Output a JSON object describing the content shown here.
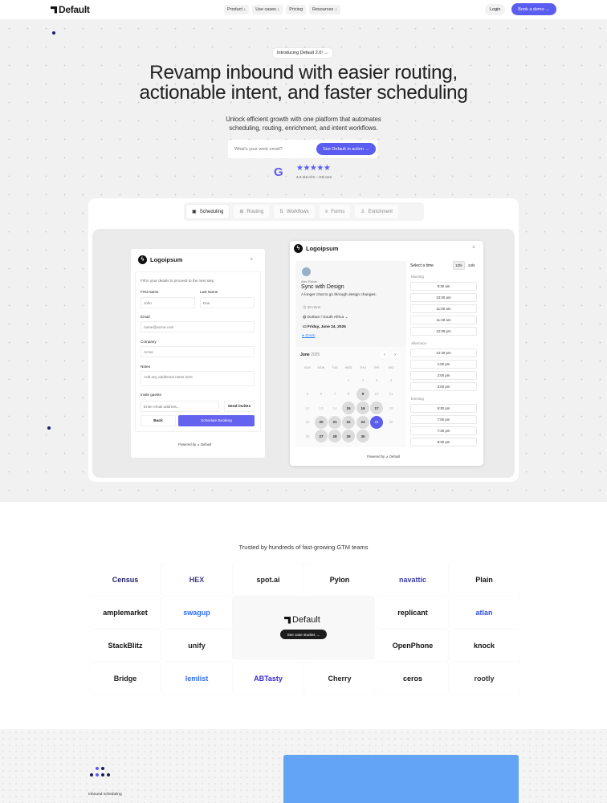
{
  "nav": {
    "logo": "Default",
    "links": [
      "Product ↓",
      "Use cases ↓",
      "Pricing",
      "Resources ↓"
    ],
    "login": "Login",
    "book_demo": "Book a demo →"
  },
  "hero": {
    "badge": "Introducing Default 2.0! →",
    "title_line1": "Revamp inbound with easier routing,",
    "title_line2": "actionable intent, and faster scheduling",
    "subtitle_line1": "Unlock efficient growth with one platform that automates",
    "subtitle_line2": "scheduling, routing, enrichment, and intent workflows.",
    "email_placeholder": "What's your work email?",
    "cta": "See Default in action →",
    "g2": "G",
    "stars": "★★★★★",
    "rating": 4.9,
    "rating_text": "4.9 out of 5 – G2.com"
  },
  "tabs": [
    {
      "label": "Scheduling",
      "icon": "calendar-icon",
      "glyph": "▣",
      "active": true
    },
    {
      "label": "Routing",
      "icon": "routing-icon",
      "glyph": "⊞"
    },
    {
      "label": "Workflows",
      "icon": "workflow-icon",
      "glyph": "⇅"
    },
    {
      "label": "Forms",
      "icon": "form-icon",
      "glyph": "≡"
    },
    {
      "label": "Enrichment",
      "icon": "user-icon",
      "glyph": "♙"
    }
  ],
  "form": {
    "brand": "Logoipsum",
    "intro": "Fill in your details to proceed to the next step",
    "first_name_label": "First Name",
    "first_name_placeholder": "John",
    "last_name_label": "Last Name",
    "last_name_placeholder": "Doe",
    "email_label": "Email",
    "email_placeholder": "name@acme.com",
    "company_label": "Company",
    "company_placeholder": "Acme",
    "notes_label": "Notes",
    "notes_placeholder": "Add any additional notes here",
    "guests_label": "Invite guests",
    "guests_placeholder": "Enter email address...",
    "send_invites": "Send invites",
    "back": "Back",
    "schedule": "Schedule Booking",
    "powered": "Powered by  ⊿ Default"
  },
  "scheduler": {
    "brand": "Logoipsum",
    "host": "Alex Fisher",
    "event_title": "Sync with Design",
    "event_desc": "A longer chat to go through design changes.",
    "duration": "30 mins",
    "timezone": "Durban / South Africa",
    "date": "Friday, June 24, 2025",
    "location": "Zoom",
    "month": "June",
    "year": "2025",
    "weekdays": [
      "SUN",
      "MON",
      "TUE",
      "WED",
      "THU",
      "FRI",
      "SAT"
    ],
    "weeks": [
      [
        "",
        "",
        "",
        "1",
        "2",
        "3",
        "4"
      ],
      [
        "5",
        "6",
        "7",
        "8",
        "9",
        "10",
        "11"
      ],
      [
        "12",
        "13",
        "14",
        "15",
        "16",
        "17",
        "18"
      ],
      [
        "19",
        "20",
        "21",
        "22",
        "23",
        "24",
        "25"
      ],
      [
        "26",
        "27",
        "28",
        "29",
        "30",
        "",
        ""
      ]
    ],
    "available": [
      "9",
      "15",
      "16",
      "17",
      "20",
      "21",
      "22",
      "23",
      "27",
      "28",
      "29",
      "30"
    ],
    "selected": "24",
    "select_time": "Select a time",
    "format_12": "12hr",
    "format_24": "24hr",
    "sections": [
      {
        "label": "Morning",
        "slots": [
          "9:30 am",
          "10:00 am",
          "11:00 am",
          "11:30 am",
          "12:00 pm"
        ]
      },
      {
        "label": "Afternoon",
        "slots": [
          "12:30 pm",
          "1:00 pm",
          "2:00 pm",
          "3:00 pm"
        ]
      },
      {
        "label": "Evening",
        "slots": [
          "6:30 pm",
          "7:00 pm",
          "7:30 pm",
          "8:30 pm"
        ]
      }
    ],
    "powered": "Powered by  ⊿ Default"
  },
  "logos": {
    "title": "Trusted by hundreds of fast-growing GTM teams",
    "items": [
      {
        "name": "Census",
        "color": "#1f1f6b"
      },
      {
        "name": "HEX",
        "color": "#3f3a8c"
      },
      {
        "name": "spot.ai",
        "color": "#222"
      },
      {
        "name": "Pylon",
        "color": "#111"
      },
      {
        "name": "navattic",
        "color": "#3d3da8"
      },
      {
        "name": "Plain",
        "color": "#111"
      },
      {
        "name": "amplemarket",
        "color": "#111"
      },
      {
        "name": "swagup",
        "color": "#2d6ef7"
      },
      {
        "name": "replicant",
        "color": "#111"
      },
      {
        "name": "atlan",
        "color": "#2f4fe0"
      },
      {
        "name": "StackBlitz",
        "color": "#111"
      },
      {
        "name": "unify",
        "color": "#222"
      },
      {
        "name": "OpenPhone",
        "color": "#111"
      },
      {
        "name": "knock",
        "color": "#111"
      },
      {
        "name": "Bridge",
        "color": "#222"
      },
      {
        "name": "lemlist",
        "color": "#316bf5"
      },
      {
        "name": "ABTasty",
        "color": "#3a2bd0"
      },
      {
        "name": "Cherry",
        "color": "#222"
      },
      {
        "name": "ceros",
        "color": "#111"
      },
      {
        "name": "rootly",
        "color": "#333"
      }
    ],
    "feature_logo": "Default",
    "case_studies": "See case studies →"
  },
  "bottom": {
    "label": "Inbound scheduling"
  },
  "colors": {
    "accent": "#5b5cf0",
    "blue_panel": "#64a4f7"
  }
}
